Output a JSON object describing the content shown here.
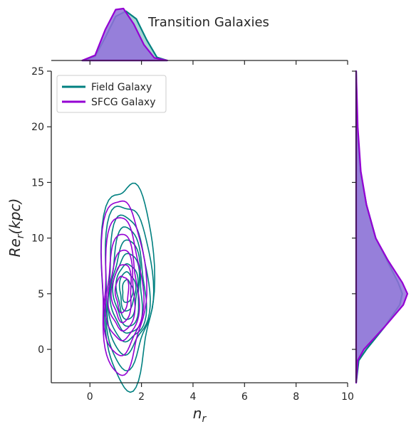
{
  "chart_data": {
    "type": "kde-joint",
    "title": "Transition Galaxies",
    "xlabel": "n_r",
    "ylabel": "Re_r(kpc)",
    "xlim": [
      -1.5,
      10
    ],
    "ylim": [
      -3,
      25
    ],
    "xticks": [
      "0",
      "2",
      "4",
      "6",
      "8",
      "10"
    ],
    "yticks": [
      "0",
      "5",
      "10",
      "15",
      "20",
      "25"
    ],
    "xtick_values": [
      0,
      2,
      4,
      6,
      8,
      10
    ],
    "ytick_values": [
      0,
      5,
      10,
      15,
      20,
      25
    ],
    "legend_placement": "upper-left",
    "series": [
      {
        "name": "Field Galaxy",
        "color": "#008080",
        "center": [
          1.45,
          5.2
        ],
        "contour_half_widths": [
          [
            1.0,
            8.2
          ],
          [
            0.92,
            6.6
          ],
          [
            0.8,
            5.6
          ],
          [
            0.7,
            4.7
          ],
          [
            0.6,
            3.9
          ],
          [
            0.5,
            3.1
          ],
          [
            0.4,
            2.4
          ],
          [
            0.3,
            1.7
          ],
          [
            0.2,
            1.0
          ]
        ],
        "marginal_x": {
          "x": [
            -0.3,
            0.2,
            0.6,
            1.0,
            1.4,
            1.8,
            2.2,
            2.6,
            3.0
          ],
          "density": [
            0.0,
            0.08,
            0.45,
            0.85,
            0.95,
            0.8,
            0.4,
            0.06,
            0.0
          ]
        },
        "marginal_y": {
          "y": [
            -3,
            -1,
            0,
            2,
            4,
            5,
            6,
            8,
            10,
            13,
            16,
            20,
            25
          ],
          "density": [
            0.0,
            0.05,
            0.2,
            0.55,
            0.85,
            0.9,
            0.82,
            0.6,
            0.38,
            0.2,
            0.08,
            0.02,
            0.0
          ]
        }
      },
      {
        "name": "SFCG Galaxy",
        "color": "#9400d3",
        "center": [
          1.25,
          5.0
        ],
        "contour_half_widths": [
          [
            0.85,
            7.0
          ],
          [
            0.75,
            5.6
          ],
          [
            0.62,
            4.4
          ],
          [
            0.5,
            3.4
          ],
          [
            0.38,
            2.5
          ],
          [
            0.25,
            1.6
          ]
        ],
        "marginal_x": {
          "x": [
            -0.3,
            0.2,
            0.6,
            1.0,
            1.3,
            1.7,
            2.1,
            2.5,
            3.0
          ],
          "density": [
            0.0,
            0.1,
            0.6,
            0.98,
            1.0,
            0.7,
            0.3,
            0.05,
            0.0
          ]
        },
        "marginal_y": {
          "y": [
            -3,
            -1,
            0,
            2,
            4,
            5,
            6,
            8,
            10,
            13,
            16,
            20,
            25
          ],
          "density": [
            0.0,
            0.03,
            0.15,
            0.55,
            0.92,
            1.0,
            0.9,
            0.62,
            0.38,
            0.2,
            0.09,
            0.03,
            0.0
          ]
        }
      }
    ],
    "overlap_fill_color": "#9370DB",
    "overlap_fill_opacity": 0.85
  }
}
